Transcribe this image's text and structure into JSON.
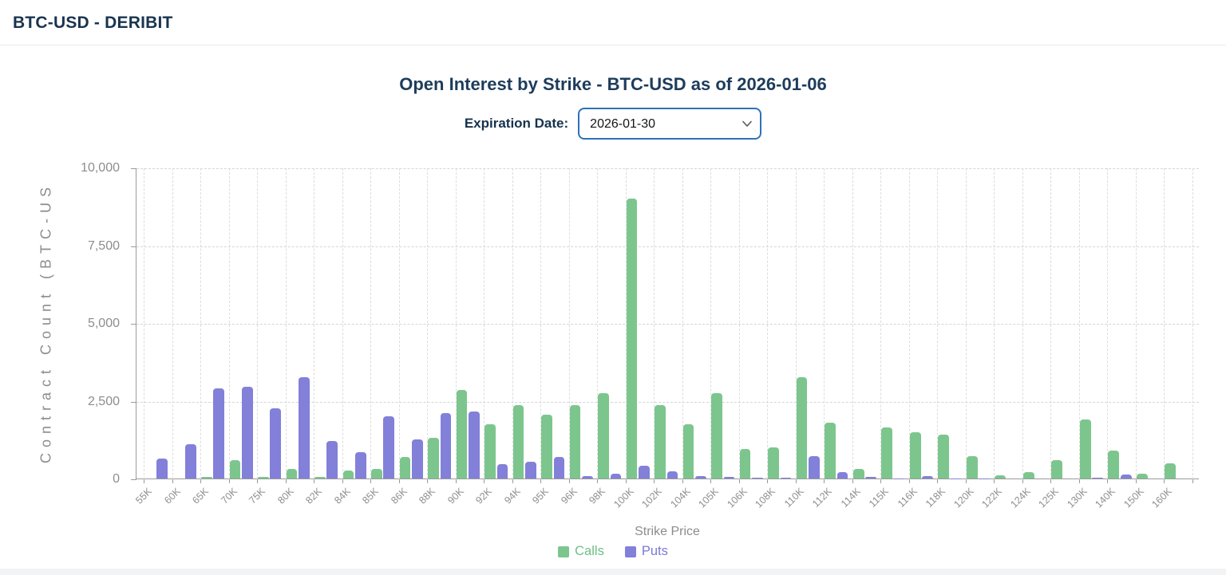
{
  "header": {
    "title": "BTC-USD - DERIBIT"
  },
  "controls": {
    "expiration_label": "Expiration Date:",
    "expiration_value": "2026-01-30"
  },
  "chart_data": {
    "type": "bar",
    "title": "Open Interest by Strike - BTC-USD as of 2026-01-06",
    "xlabel": "Strike Price",
    "ylabel": "Contract Count (BTC-US",
    "ylim": [
      0,
      10000
    ],
    "yticks": [
      0,
      2500,
      5000,
      7500,
      10000
    ],
    "ytick_labels": [
      "0",
      "2,500",
      "5,000",
      "7,500",
      "10,000"
    ],
    "grid": true,
    "legend_position": "bottom",
    "categories": [
      "55K",
      "60K",
      "65K",
      "70K",
      "75K",
      "80K",
      "82K",
      "84K",
      "85K",
      "86K",
      "88K",
      "90K",
      "92K",
      "94K",
      "95K",
      "96K",
      "98K",
      "100K",
      "102K",
      "104K",
      "105K",
      "106K",
      "108K",
      "110K",
      "112K",
      "114K",
      "115K",
      "116K",
      "118K",
      "120K",
      "122K",
      "124K",
      "125K",
      "130K",
      "140K",
      "150K",
      "160K"
    ],
    "series": [
      {
        "name": "Calls",
        "color": "#7cc68e",
        "text_color": "#6fbf86",
        "values": [
          0,
          0,
          50,
          600,
          40,
          300,
          40,
          250,
          300,
          700,
          1300,
          2850,
          1750,
          2350,
          2050,
          2350,
          2750,
          9000,
          2350,
          1750,
          2750,
          950,
          1000,
          3250,
          1800,
          300,
          1650,
          1500,
          1400,
          725,
          100,
          200,
          600,
          1900,
          900,
          150,
          475
        ]
      },
      {
        "name": "Puts",
        "color": "#8280d9",
        "text_color": "#7b78d8",
        "values": [
          650,
          1100,
          2900,
          2950,
          2250,
          3250,
          1200,
          850,
          2000,
          1250,
          2100,
          2150,
          450,
          550,
          700,
          80,
          150,
          400,
          225,
          80,
          40,
          25,
          20,
          725,
          200,
          50,
          10,
          80,
          10,
          10,
          0,
          0,
          0,
          30,
          120,
          0,
          0
        ]
      }
    ]
  }
}
